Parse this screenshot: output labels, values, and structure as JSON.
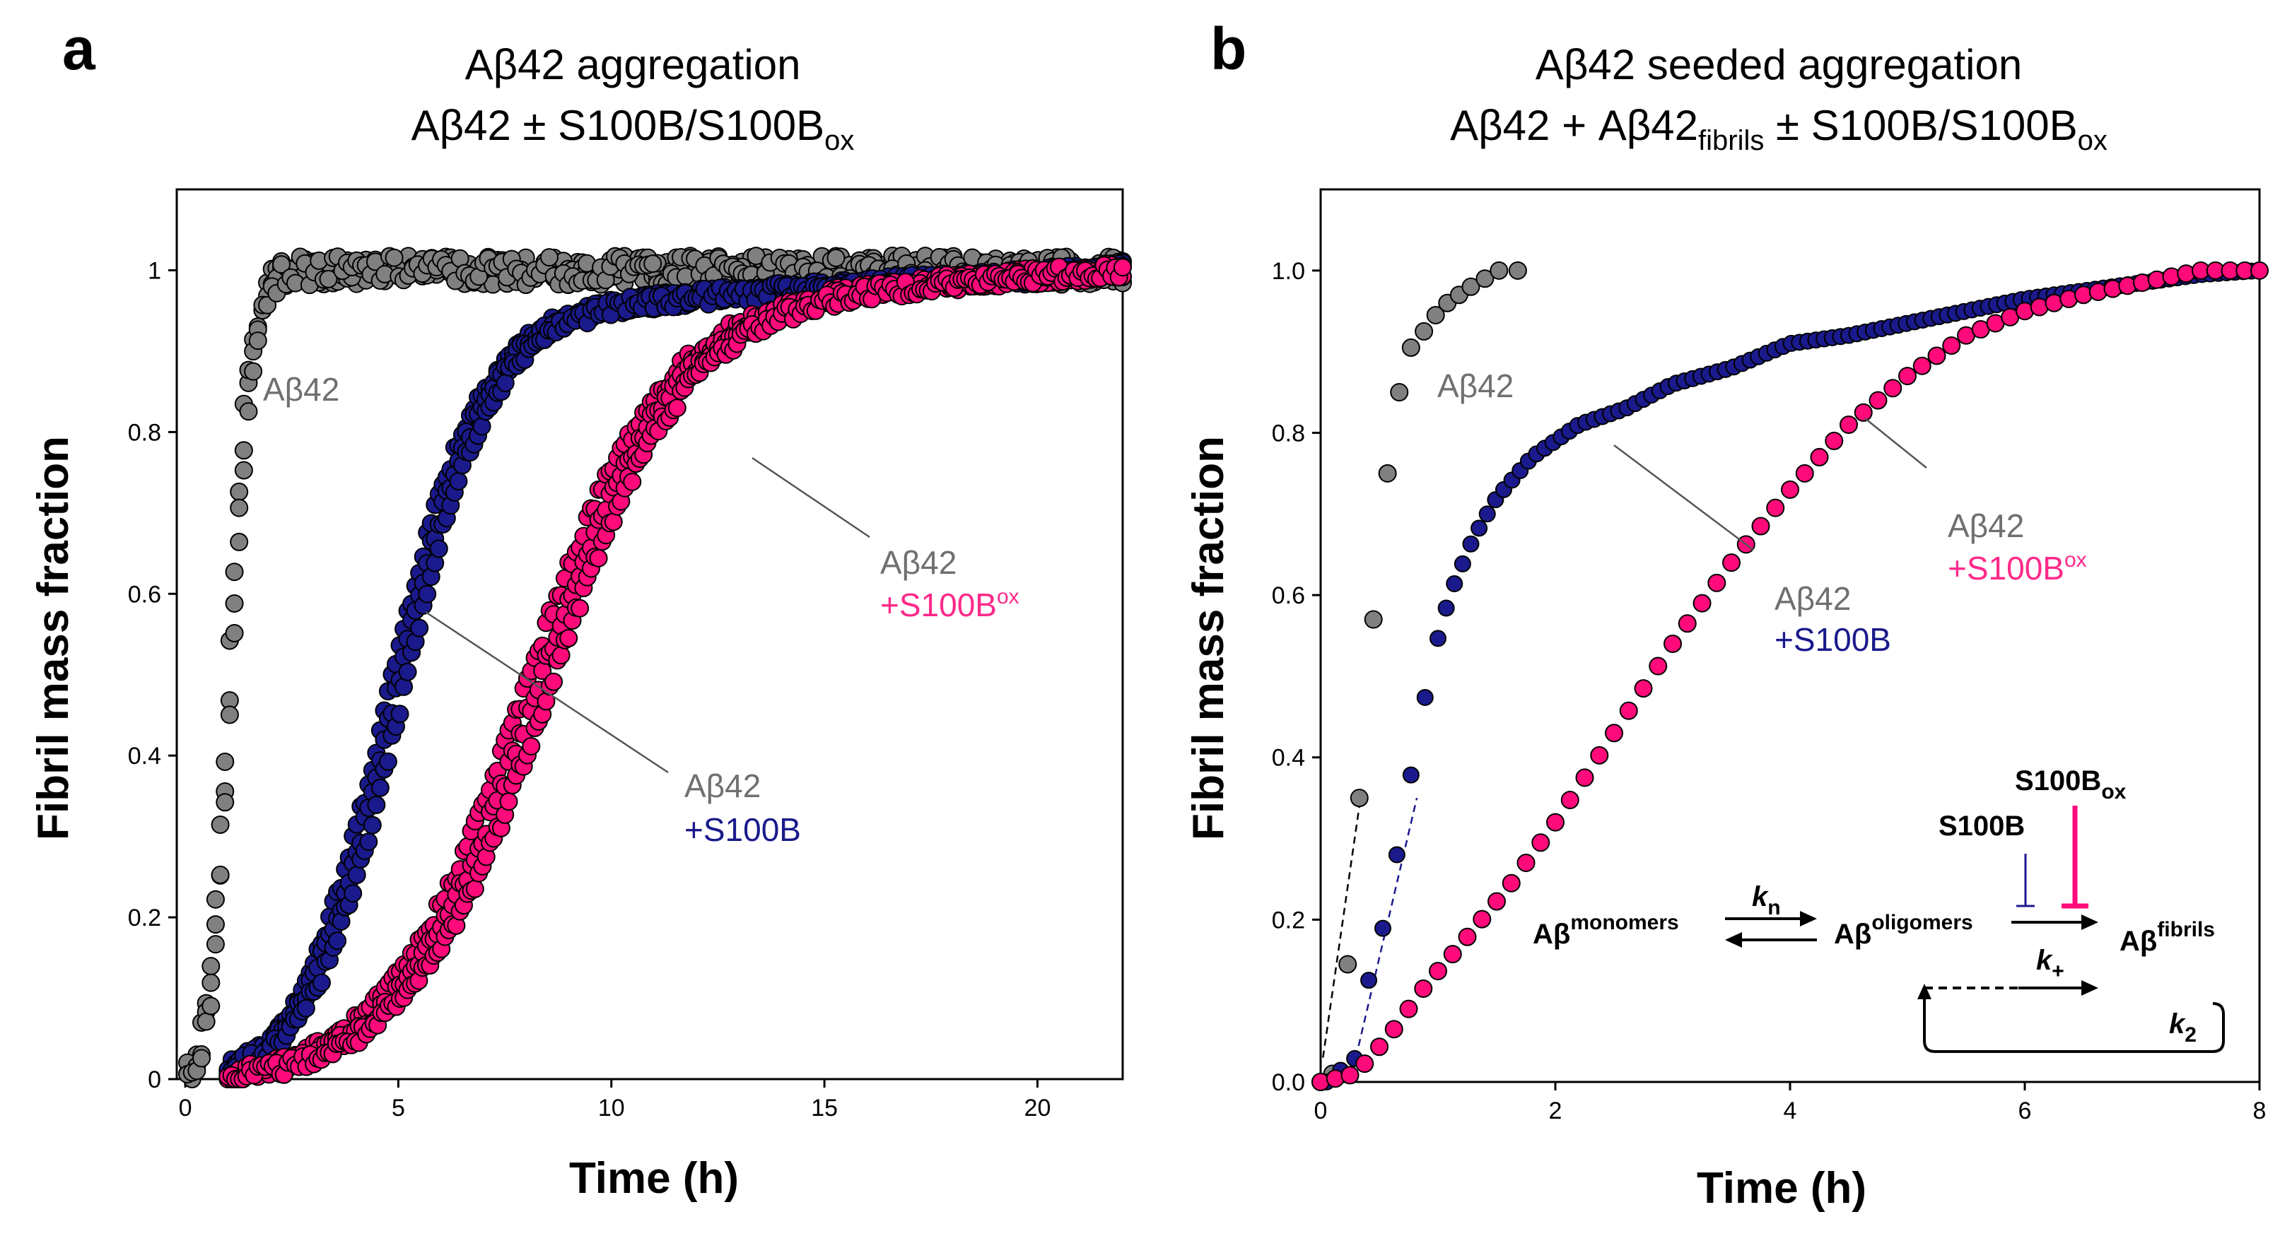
{
  "panel_a": {
    "label": "a",
    "title_line1": "Aβ42 aggregation",
    "title_line2_prefix": "Aβ42 ± S100B/S100B",
    "title_line2_sub": "ox"
  },
  "panel_b": {
    "label": "b",
    "title_line1": "Aβ42 seeded aggregation",
    "title_line2_prefix": "Aβ42 + Aβ42",
    "title_line2_sub": "fibrils",
    "title_line2_mid": " ± S100B/S100B",
    "title_line2_sub2": "ox"
  },
  "colors": {
    "grey": "#808080",
    "blue": "#1a1a8c",
    "pink": "#ff0a7a",
    "pink_text": "#ff2a8a",
    "blue_text": "#1a1a8c",
    "grey_text": "#707070"
  },
  "scheme": {
    "monomers_base": "Aβ",
    "monomers_sup": "monomers",
    "oligomers_base": "Aβ",
    "oligomers_sup": "oligomers",
    "fibrils_base": "Aβ",
    "fibrils_sup": "fibrils",
    "kn_base": "k",
    "kn_sub": "n",
    "kplus_base": "k",
    "kplus_sub": "+",
    "k2_base": "k",
    "k2_sub": "2",
    "s100b": "S100B",
    "s100box_base": "S100B",
    "s100box_sub": "ox"
  },
  "chart_data": [
    {
      "type": "scatter",
      "panel": "a",
      "title": "Aβ42 aggregation / Aβ42 ± S100B/S100Box",
      "xlabel": "Time (h)",
      "ylabel": "Fibril mass fraction",
      "xlim": [
        -0.2,
        22
      ],
      "ylim": [
        0,
        1.1
      ],
      "xticks": [
        0,
        5,
        10,
        15,
        20
      ],
      "xtick_labels": [
        "0",
        "5",
        "10",
        "15",
        "20"
      ],
      "yticks": [
        0,
        0.2,
        0.4,
        0.6,
        0.8,
        1
      ],
      "ytick_labels": [
        "0",
        "0.2",
        "0.4",
        "0.6",
        "0.8",
        "1"
      ],
      "series": [
        {
          "name": "Aβ42",
          "color": "grey",
          "model": "sigmoid",
          "t_half": 1.05,
          "rate": 4.2,
          "t_start": 0.05,
          "t_end": 22,
          "points": 200,
          "noise": 0.018,
          "replicates": 3
        },
        {
          "name": "Aβ42 +S100B",
          "color": "blue",
          "model": "sigmoid_tail",
          "t_half": 4.9,
          "rate": 0.95,
          "t_start": 1.0,
          "t_end": 22,
          "points": 230,
          "noise": 0.01,
          "replicates": 3
        },
        {
          "name": "Aβ42 +S100Box",
          "color": "pink",
          "model": "sigmoid_tail",
          "t_half": 8.2,
          "rate": 0.62,
          "t_start": 1.0,
          "t_end": 22,
          "points": 240,
          "noise": 0.01,
          "replicates": 3
        }
      ],
      "annotations": [
        {
          "text": "Aβ42",
          "color": "grey_text"
        },
        {
          "line1": "Aβ42",
          "line2": "+S100B",
          "color2": "blue_text"
        },
        {
          "line1": "Aβ42",
          "line2_prefix": "+S100B",
          "line2_sup": "ox",
          "color2": "pink_text"
        }
      ]
    },
    {
      "type": "scatter",
      "panel": "b",
      "title": "Aβ42 seeded aggregation / Aβ42 + Aβ42fibrils ± S100B/S100Box",
      "xlabel": "Time (h)",
      "ylabel": "Fibril mass fraction",
      "xlim": [
        0,
        8
      ],
      "ylim": [
        0,
        1.1
      ],
      "xticks": [
        0,
        2,
        4,
        6,
        8
      ],
      "xtick_labels": [
        "0",
        "2",
        "4",
        "6",
        "8"
      ],
      "yticks": [
        0,
        0.2,
        0.4,
        0.6,
        0.8,
        1.0
      ],
      "ytick_labels": [
        "0.0",
        "0.2",
        "0.4",
        "0.6",
        "0.8",
        "1.0"
      ],
      "series": [
        {
          "name": "Aβ42",
          "color": "grey",
          "x": [
            0.0,
            0.1,
            0.23,
            0.33,
            0.45,
            0.57,
            0.67,
            0.77,
            0.88,
            0.98,
            1.08,
            1.18,
            1.28,
            1.4,
            1.52,
            1.68
          ],
          "y": [
            0.0,
            0.01,
            0.145,
            0.35,
            0.57,
            0.75,
            0.85,
            0.905,
            0.925,
            0.945,
            0.96,
            0.97,
            0.98,
            0.99,
            1.0,
            1.0
          ]
        },
        {
          "name": "Aβ42 +S100B",
          "color": "blue",
          "model": "dense",
          "x": [
            0.05,
            0.3,
            0.4,
            0.55,
            0.7,
            0.82,
            0.95,
            1.1,
            1.3,
            1.5,
            1.8,
            2.2,
            2.6,
            3.0,
            3.5,
            4.0,
            4.5,
            5.0,
            5.5,
            6.0,
            6.5,
            7.0,
            7.5,
            8.0
          ],
          "y": [
            0.0,
            0.03,
            0.12,
            0.2,
            0.32,
            0.42,
            0.52,
            0.6,
            0.67,
            0.72,
            0.77,
            0.81,
            0.83,
            0.86,
            0.88,
            0.91,
            0.92,
            0.935,
            0.95,
            0.965,
            0.975,
            0.985,
            0.995,
            1.0
          ]
        },
        {
          "name": "Aβ42 +S100Box",
          "color": "pink",
          "model": "sparse",
          "x": [
            0.0,
            0.3,
            0.6,
            0.9,
            1.2,
            1.6,
            2.0,
            2.5,
            3.0,
            3.5,
            4.0,
            4.5,
            5.0,
            5.5,
            6.0,
            6.5,
            7.0,
            7.5,
            8.0
          ],
          "y": [
            0.0,
            0.01,
            0.06,
            0.12,
            0.17,
            0.24,
            0.32,
            0.43,
            0.54,
            0.64,
            0.73,
            0.81,
            0.87,
            0.92,
            0.95,
            0.97,
            0.985,
            1.0,
            1.0
          ]
        }
      ],
      "annotations": [
        {
          "text": "Aβ42",
          "color": "grey_text"
        },
        {
          "line1": "Aβ42",
          "line2": "+S100B",
          "color2": "blue_text"
        },
        {
          "line1": "Aβ42",
          "line2_prefix": "+S100B",
          "line2_sup": "ox",
          "color2": "pink_text"
        }
      ]
    }
  ]
}
